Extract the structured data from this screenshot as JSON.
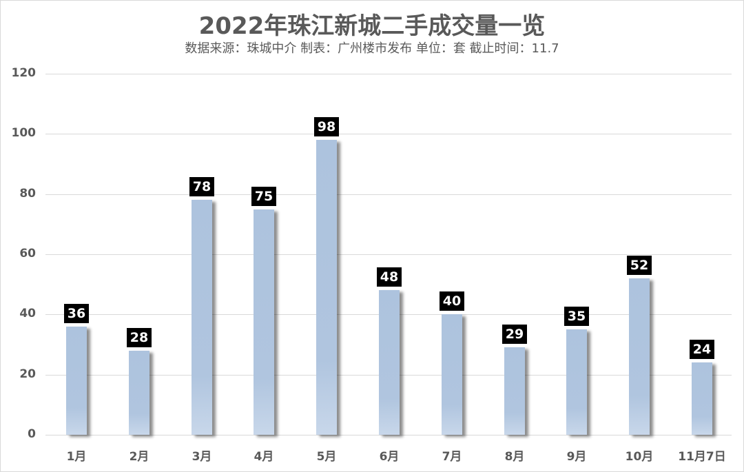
{
  "chart_data": {
    "type": "bar",
    "title": "2022年珠江新城二手成交量一览",
    "subtitle": "数据来源：珠城中介 制表：广州楼市发布 单位：套 截止时间：11.7",
    "categories": [
      "1月",
      "2月",
      "3月",
      "4月",
      "5月",
      "6月",
      "7月",
      "8月",
      "9月",
      "10月",
      "11月7日"
    ],
    "values": [
      36,
      28,
      78,
      75,
      98,
      48,
      40,
      29,
      35,
      52,
      24
    ],
    "xlabel": "",
    "ylabel": "",
    "ylim": [
      0,
      120
    ],
    "yticks": [
      "0",
      "20",
      "40",
      "60",
      "80",
      "100",
      "120"
    ],
    "grid": true,
    "legend": "none",
    "data_labels": true,
    "bar_color": "#b0c5df",
    "label_bg_color": "#000000"
  }
}
